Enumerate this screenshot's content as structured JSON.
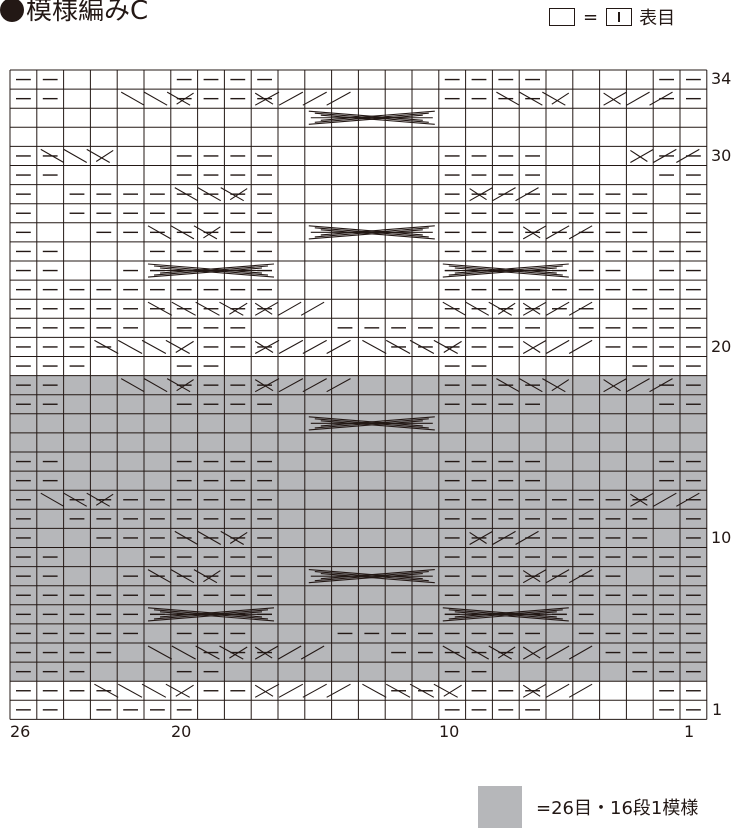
{
  "title": "模様編みC",
  "legend": {
    "equals": "=",
    "symbol_name": "vertical-bar-knit-symbol",
    "label": "表目"
  },
  "row_labels": {
    "r34": "34",
    "r30": "30",
    "r20": "20",
    "r10": "10",
    "r1": "1"
  },
  "col_labels": {
    "c26": "26",
    "c20": "20",
    "c10": "10",
    "c1": "1"
  },
  "footer": {
    "text": "=26目・16段1模様"
  },
  "colors": {
    "line": "#231815",
    "shade": "#b6b7ba",
    "background": "#ffffff"
  },
  "chart_data": {
    "type": "knitting-chart",
    "stitches": 26,
    "rows": 34,
    "shaded_rows": [
      3,
      18
    ],
    "repeat": {
      "stitches": 26,
      "rows": 16
    },
    "numbering": "column 1 at right, row 1 at bottom",
    "purl_runs": {
      "1": [
        [
          1,
          2
        ],
        [
          7,
          10
        ],
        [
          20,
          23
        ],
        [
          25,
          26
        ]
      ],
      "2": [
        [
          1,
          2
        ],
        [
          7,
          9
        ],
        [
          11,
          12
        ],
        [
          18,
          19
        ],
        [
          23,
          24
        ],
        [
          25,
          26
        ]
      ],
      "3": [
        [
          1,
          3
        ],
        [
          9,
          10
        ],
        [
          19,
          20
        ],
        [
          24,
          26
        ]
      ],
      "4": [
        [
          1,
          4
        ],
        [
          8,
          9
        ],
        [
          10,
          12
        ],
        [
          17,
          19
        ],
        [
          23,
          26
        ]
      ],
      "5": [
        [
          1,
          5
        ],
        [
          7,
          9
        ],
        [
          10,
          14
        ],
        [
          18,
          20
        ],
        [
          22,
          26
        ]
      ],
      "6": [
        [
          1,
          3
        ],
        [
          5,
          10
        ],
        [
          17,
          23
        ],
        [
          24,
          26
        ]
      ],
      "7": [
        [
          1,
          3
        ],
        [
          4,
          10
        ],
        [
          17,
          23
        ],
        [
          24,
          26
        ]
      ],
      "8": [
        [
          1,
          2
        ],
        [
          4,
          10
        ],
        [
          17,
          22
        ],
        [
          25,
          26
        ]
      ],
      "9": [
        [
          1,
          2
        ],
        [
          3,
          10
        ],
        [
          17,
          21
        ],
        [
          25,
          26
        ]
      ],
      "10": [
        [
          1,
          1
        ],
        [
          3,
          10
        ],
        [
          17,
          23
        ],
        [
          26,
          26
        ]
      ],
      "11": [
        [
          1,
          1
        ],
        [
          3,
          10
        ],
        [
          17,
          24
        ],
        [
          26,
          26
        ]
      ],
      "12": [
        [
          1,
          1
        ],
        [
          3,
          10
        ],
        [
          17,
          24
        ],
        [
          26,
          26
        ]
      ],
      "13": [
        [
          1,
          2
        ],
        [
          7,
          10
        ],
        [
          17,
          20
        ],
        [
          25,
          26
        ]
      ],
      "14": [
        [
          1,
          2
        ],
        [
          7,
          10
        ],
        [
          17,
          20
        ],
        [
          25,
          26
        ]
      ],
      "17": [
        [
          1,
          2
        ],
        [
          7,
          10
        ],
        [
          17,
          20
        ],
        [
          25,
          26
        ]
      ],
      "18": [
        [
          1,
          2
        ],
        [
          7,
          10
        ],
        [
          17,
          20
        ],
        [
          25,
          26
        ]
      ]
    },
    "cables": [
      {
        "row": 2,
        "from": 5,
        "to": 7,
        "dir": "left"
      },
      {
        "row": 2,
        "from": 10,
        "to": 13,
        "dir": "right"
      },
      {
        "row": 2,
        "from": 14,
        "to": 17,
        "dir": "left"
      },
      {
        "row": 2,
        "from": 20,
        "to": 23,
        "dir": "right"
      },
      {
        "row": 4,
        "from": 5,
        "to": 7,
        "dir": "left"
      },
      {
        "row": 4,
        "from": 8,
        "to": 10,
        "dir": "right"
      },
      {
        "row": 4,
        "from": 15,
        "to": 17,
        "dir": "left"
      },
      {
        "row": 4,
        "from": 18,
        "to": 21,
        "dir": "right"
      },
      {
        "row": 6,
        "from": 6,
        "to": 10,
        "dir": "cross"
      },
      {
        "row": 6,
        "from": 17,
        "to": 21,
        "dir": "cross"
      },
      {
        "row": 8,
        "from": 5,
        "to": 7,
        "dir": "left"
      },
      {
        "row": 8,
        "from": 11,
        "to": 15,
        "dir": "cross"
      },
      {
        "row": 8,
        "from": 19,
        "to": 21,
        "dir": "right"
      },
      {
        "row": 10,
        "from": 7,
        "to": 9,
        "dir": "left"
      },
      {
        "row": 10,
        "from": 18,
        "to": 20,
        "dir": "right"
      },
      {
        "row": 12,
        "from": 1,
        "to": 3,
        "dir": "left"
      },
      {
        "row": 12,
        "from": 23,
        "to": 25,
        "dir": "right"
      },
      {
        "row": 16,
        "from": 11,
        "to": 15,
        "dir": "cross"
      },
      {
        "row": 18,
        "from": 2,
        "to": 4,
        "dir": "left"
      },
      {
        "row": 18,
        "from": 6,
        "to": 8,
        "dir": "right"
      },
      {
        "row": 18,
        "from": 14,
        "to": 17,
        "dir": "left"
      },
      {
        "row": 18,
        "from": 20,
        "to": 22,
        "dir": "right"
      },
      {
        "row": 20,
        "from": 5,
        "to": 7,
        "dir": "left"
      },
      {
        "row": 20,
        "from": 10,
        "to": 13,
        "dir": "right"
      },
      {
        "row": 20,
        "from": 14,
        "to": 17,
        "dir": "left"
      },
      {
        "row": 20,
        "from": 20,
        "to": 23,
        "dir": "right"
      },
      {
        "row": 22,
        "from": 5,
        "to": 7,
        "dir": "left"
      },
      {
        "row": 22,
        "from": 8,
        "to": 10,
        "dir": "right"
      },
      {
        "row": 22,
        "from": 15,
        "to": 17,
        "dir": "left"
      },
      {
        "row": 22,
        "from": 18,
        "to": 21,
        "dir": "right"
      },
      {
        "row": 24,
        "from": 6,
        "to": 10,
        "dir": "cross"
      },
      {
        "row": 24,
        "from": 17,
        "to": 21,
        "dir": "cross"
      },
      {
        "row": 26,
        "from": 5,
        "to": 7,
        "dir": "left"
      },
      {
        "row": 26,
        "from": 11,
        "to": 15,
        "dir": "cross"
      },
      {
        "row": 26,
        "from": 19,
        "to": 21,
        "dir": "right"
      },
      {
        "row": 28,
        "from": 7,
        "to": 9,
        "dir": "left"
      },
      {
        "row": 28,
        "from": 18,
        "to": 20,
        "dir": "right"
      },
      {
        "row": 30,
        "from": 1,
        "to": 3,
        "dir": "left"
      },
      {
        "row": 30,
        "from": 23,
        "to": 25,
        "dir": "right"
      },
      {
        "row": 32,
        "from": 11,
        "to": 15,
        "dir": "cross"
      },
      {
        "row": 33,
        "from": 2,
        "to": 4,
        "dir": "left"
      },
      {
        "row": 33,
        "from": 6,
        "to": 8,
        "dir": "right"
      },
      {
        "row": 33,
        "from": 14,
        "to": 17,
        "dir": "left"
      },
      {
        "row": 33,
        "from": 20,
        "to": 22,
        "dir": "right"
      }
    ]
  }
}
